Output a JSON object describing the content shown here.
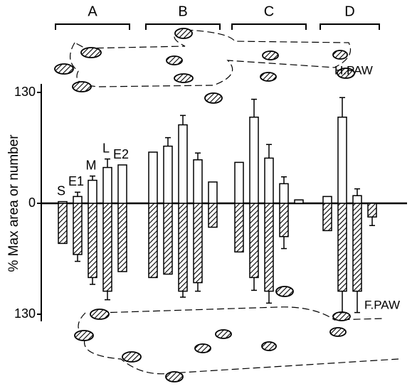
{
  "chart_data": {
    "type": "bar",
    "y_label": "% Max area or number",
    "ylim": [
      -130,
      130
    ],
    "yticks": [
      130,
      0,
      {
        "value": -130,
        "label": "130"
      }
    ],
    "annotations": [
      "H.PAW",
      "F.PAW"
    ],
    "groups": [
      {
        "name": "A",
        "categories": [
          "S",
          "E1",
          "M",
          "L",
          "E2"
        ]
      },
      {
        "name": "B",
        "categories": [
          null,
          null,
          null,
          null,
          null
        ]
      },
      {
        "name": "C",
        "categories": [
          null,
          null,
          null,
          null,
          null
        ]
      },
      {
        "name": "D",
        "categories": [
          null,
          null,
          null,
          null
        ]
      }
    ],
    "series": [
      {
        "name": "H.PAW",
        "color": "#ffffff",
        "hatched": false,
        "values": [
          [
            2,
            8,
            27,
            42,
            45
          ],
          [
            60,
            67,
            92,
            51,
            25
          ],
          [
            48,
            101,
            53,
            23,
            4
          ],
          [
            8,
            101,
            9,
            null
          ]
        ],
        "errors": [
          [
            null,
            5,
            5,
            10,
            null
          ],
          [
            null,
            10,
            11,
            8,
            null
          ],
          [
            null,
            21,
            16,
            8,
            null
          ],
          [
            null,
            23,
            8,
            null
          ]
        ]
      },
      {
        "name": "F.PAW",
        "color": "#000000",
        "hatched": true,
        "values": [
          [
            -47,
            -60,
            -87,
            -103,
            -80
          ],
          [
            -87,
            -83,
            -103,
            -93,
            -28
          ],
          [
            -57,
            -87,
            -103,
            -39,
            null
          ],
          [
            -32,
            -103,
            -103,
            -16
          ]
        ],
        "errors": [
          [
            null,
            8,
            8,
            10,
            null
          ],
          [
            null,
            null,
            7,
            10,
            null
          ],
          [
            null,
            15,
            14,
            14,
            null
          ],
          [
            null,
            25,
            25,
            10
          ]
        ]
      }
    ]
  }
}
